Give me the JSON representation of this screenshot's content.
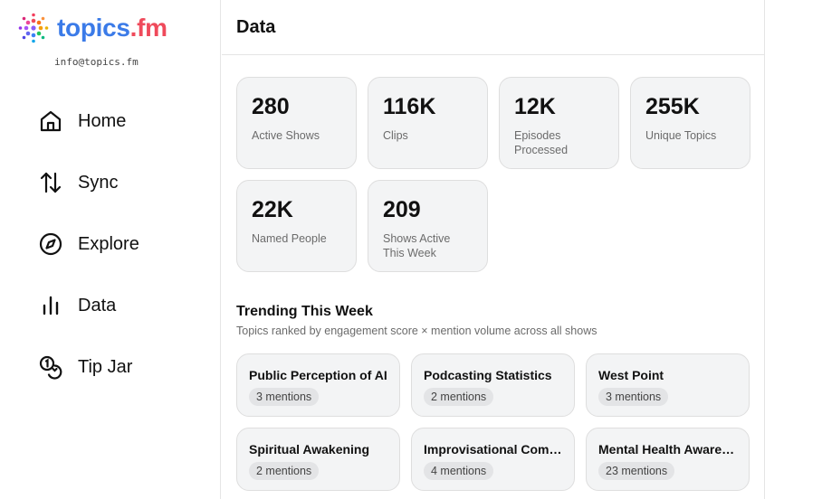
{
  "brand": {
    "name_part1": "topics",
    "name_part2": ".fm",
    "email": "info@topics.fm",
    "logo_icon": "dot-burst-logo"
  },
  "nav": [
    {
      "label": "Home",
      "icon": "home-icon"
    },
    {
      "label": "Sync",
      "icon": "sync-arrows-icon"
    },
    {
      "label": "Explore",
      "icon": "compass-icon"
    },
    {
      "label": "Data",
      "icon": "bar-chart-icon"
    },
    {
      "label": "Tip Jar",
      "icon": "coins-icon"
    }
  ],
  "header": {
    "title": "Data"
  },
  "stats": [
    {
      "value": "280",
      "label": "Active Shows"
    },
    {
      "value": "116K",
      "label": "Clips"
    },
    {
      "value": "12K",
      "label": "Episodes Processed"
    },
    {
      "value": "255K",
      "label": "Unique Topics"
    },
    {
      "value": "22K",
      "label": "Named People"
    },
    {
      "value": "209",
      "label": "Shows Active This Week"
    }
  ],
  "trending": {
    "title": "Trending This Week",
    "subtitle": "Topics ranked by engagement score × mention volume across all shows",
    "topics": [
      {
        "name": "Public Perception of AI",
        "mentions": "3 mentions"
      },
      {
        "name": "Podcasting Statistics",
        "mentions": "2 mentions"
      },
      {
        "name": "West Point",
        "mentions": "3 mentions"
      },
      {
        "name": "Spiritual Awakening",
        "mentions": "2 mentions"
      },
      {
        "name": "Improvisational Comedy",
        "mentions": "4 mentions"
      },
      {
        "name": "Mental Health Awareness",
        "mentions": "23 mentions"
      }
    ]
  },
  "colors": {
    "brand_blue": "#3b7be8",
    "brand_red": "#ef4a5b",
    "card_bg": "#f3f4f5",
    "border": "#e5e5e5"
  }
}
